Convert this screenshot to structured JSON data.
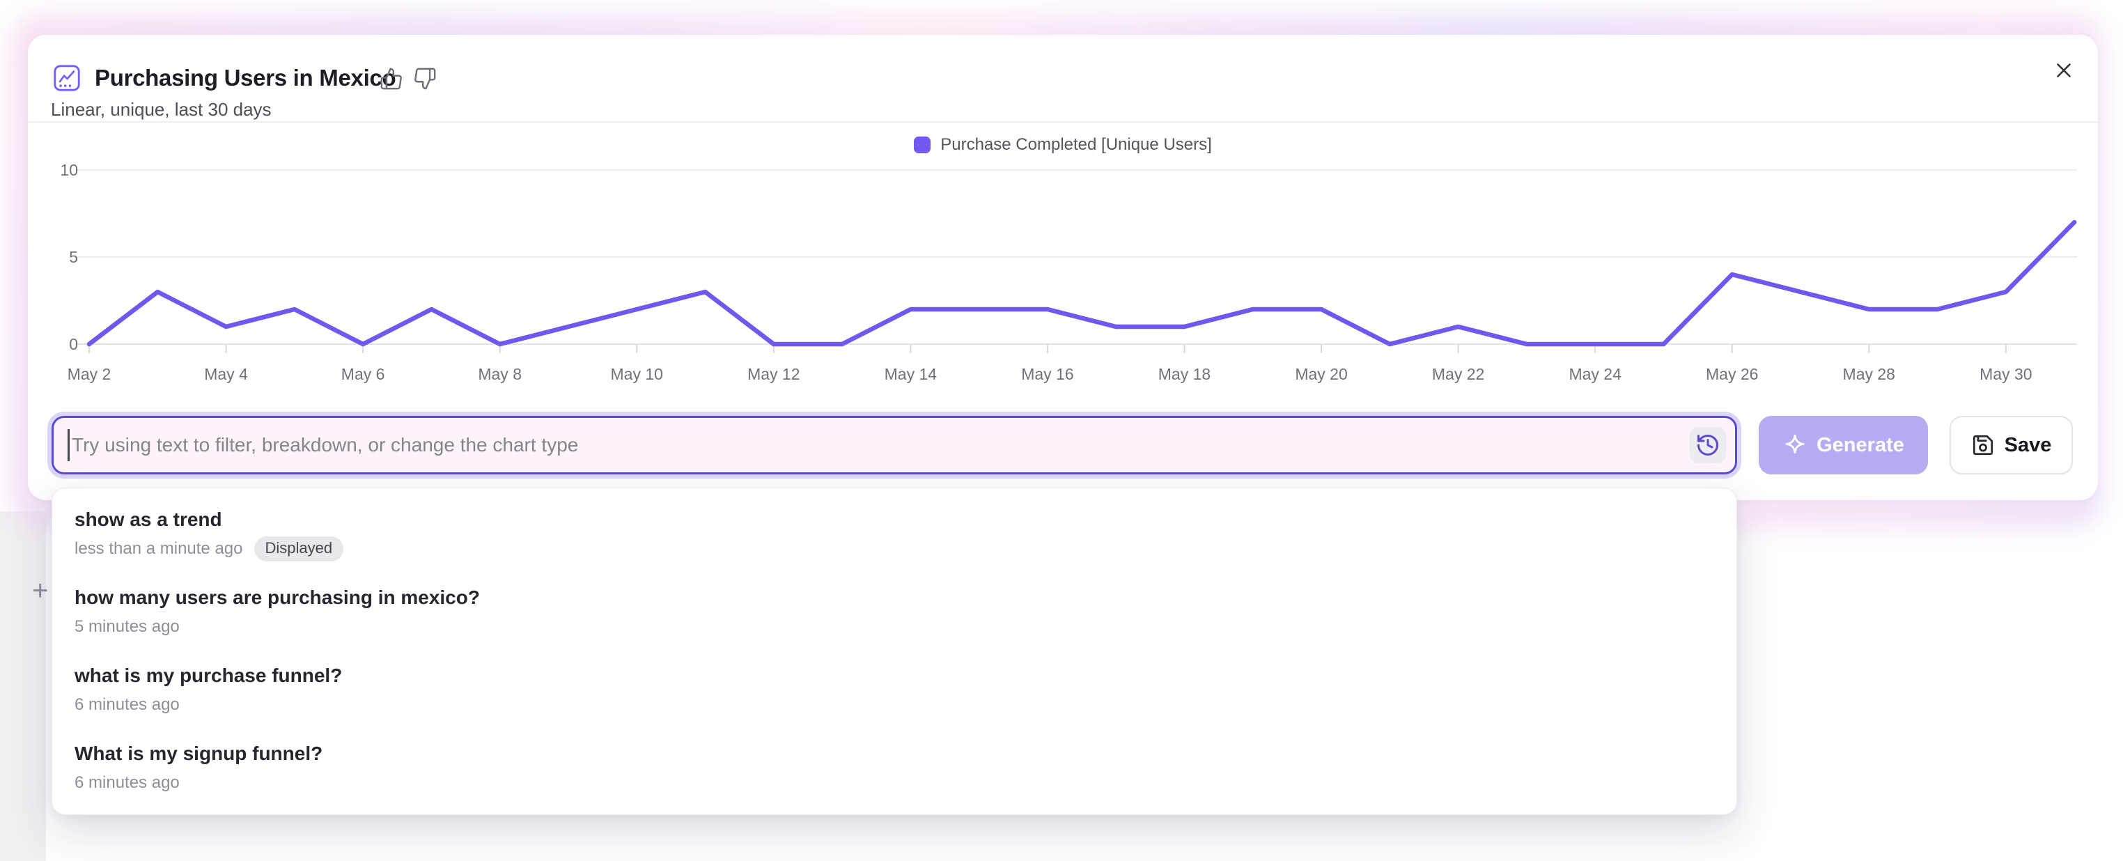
{
  "header": {
    "title": "Purchasing Users in Mexico",
    "subtitle": "Linear, unique, last 30 days"
  },
  "legend": {
    "label": "Purchase Completed [Unique Users]",
    "color": "#7458F0"
  },
  "chart_data": {
    "type": "line",
    "title": "Purchasing Users in Mexico",
    "x": [
      "May 2",
      "May 3",
      "May 4",
      "May 5",
      "May 6",
      "May 7",
      "May 8",
      "May 9",
      "May 10",
      "May 11",
      "May 12",
      "May 13",
      "May 14",
      "May 15",
      "May 16",
      "May 17",
      "May 18",
      "May 19",
      "May 20",
      "May 21",
      "May 22",
      "May 23",
      "May 24",
      "May 25",
      "May 26",
      "May 27",
      "May 28",
      "May 29",
      "May 30",
      "May 31"
    ],
    "series": [
      {
        "name": "Purchase Completed [Unique Users]",
        "color": "#7257EE",
        "values": [
          0,
          3,
          1,
          2,
          0,
          2,
          0,
          1,
          2,
          3,
          0,
          0,
          2,
          2,
          2,
          1,
          1,
          2,
          2,
          0,
          1,
          0,
          0,
          0,
          4,
          3,
          2,
          2,
          3,
          7
        ]
      }
    ],
    "yticks": [
      0,
      5,
      10
    ],
    "ylim": [
      0,
      10
    ],
    "x_tick_every": 2,
    "grid": "horizontal",
    "legend_position": "top-center"
  },
  "prompt": {
    "placeholder": "Try using text to filter, breakdown, or change the chart type"
  },
  "buttons": {
    "generate": "Generate",
    "save": "Save"
  },
  "history": {
    "items": [
      {
        "title": "show as a trend",
        "time": "less than a minute ago",
        "badge": "Displayed"
      },
      {
        "title": "how many users are purchasing in mexico?",
        "time": "5 minutes ago",
        "badge": null
      },
      {
        "title": "what is my purchase funnel?",
        "time": "6 minutes ago",
        "badge": null
      },
      {
        "title": "What is my signup funnel?",
        "time": "6 minutes ago",
        "badge": null
      }
    ]
  },
  "canvas": {
    "plus_marker": "+"
  },
  "colors": {
    "accent_icon": "#7C5CFC",
    "line": "#7257EE",
    "legend_square": "#7458F0",
    "input_border": "#5A4BD0",
    "input_bg": "#FDF4FB",
    "generate_bg": "#B7ABF3",
    "history_icon": "#5B4CCF",
    "badge_bg": "#E8E8EB"
  }
}
